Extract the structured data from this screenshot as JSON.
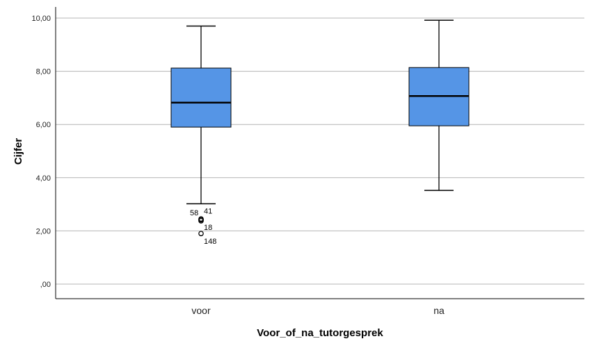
{
  "chart_data": {
    "type": "boxplot",
    "xlabel": "Voor_of_na_tutorgesprek",
    "ylabel": "Cijfer",
    "ylim": [
      0,
      10
    ],
    "yticks": [
      {
        "value": 0,
        "label": ",00"
      },
      {
        "value": 2,
        "label": "2,00"
      },
      {
        "value": 4,
        "label": "4,00"
      },
      {
        "value": 6,
        "label": "6,00"
      },
      {
        "value": 8,
        "label": "8,00"
      },
      {
        "value": 10,
        "label": "10,00"
      }
    ],
    "grid": true,
    "categories": [
      "voor",
      "na"
    ],
    "boxes": [
      {
        "category": "voor",
        "min": 3.02,
        "q1": 5.9,
        "median": 6.82,
        "q3": 8.12,
        "max": 9.7,
        "outliers": [
          {
            "value": 2.45,
            "label": "58"
          },
          {
            "value": 2.42,
            "label": "41"
          },
          {
            "value": 2.38,
            "label": "18"
          },
          {
            "value": 1.9,
            "label": "148"
          }
        ]
      },
      {
        "category": "na",
        "min": 3.52,
        "q1": 5.95,
        "median": 7.07,
        "q3": 8.14,
        "max": 9.92,
        "outliers": []
      }
    ],
    "colors": {
      "box_fill": "#5595e6",
      "box_stroke": "#000000",
      "grid": "#b4b4b4",
      "axis": "#000000"
    }
  }
}
